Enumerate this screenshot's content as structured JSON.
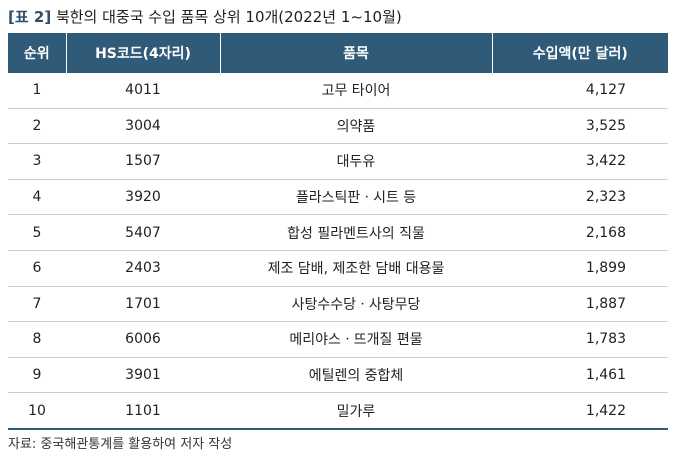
{
  "title": {
    "tag": "[표 2]",
    "text": "북한의 대중국 수입 품목 상위 10개(2022년 1~10월)"
  },
  "table": {
    "headers": [
      "순위",
      "HS코드(4자리)",
      "품목",
      "수입액(만 달러)"
    ],
    "rows": [
      {
        "rank": "1",
        "hs": "4011",
        "item": "고무 타이어",
        "amount": "4,127"
      },
      {
        "rank": "2",
        "hs": "3004",
        "item": "의약품",
        "amount": "3,525"
      },
      {
        "rank": "3",
        "hs": "1507",
        "item": "대두유",
        "amount": "3,422"
      },
      {
        "rank": "4",
        "hs": "3920",
        "item": "플라스틱판ㆍ시트 등",
        "amount": "2,323"
      },
      {
        "rank": "5",
        "hs": "5407",
        "item": "합성 필라멘트사의 직물",
        "amount": "2,168"
      },
      {
        "rank": "6",
        "hs": "2403",
        "item": "제조 담배, 제조한 담배 대용물",
        "amount": "1,899"
      },
      {
        "rank": "7",
        "hs": "1701",
        "item": "사탕수수당ㆍ사탕무당",
        "amount": "1,887"
      },
      {
        "rank": "8",
        "hs": "6006",
        "item": "메리야스ㆍ뜨개질 편물",
        "amount": "1,783"
      },
      {
        "rank": "9",
        "hs": "3901",
        "item": "에틸렌의 중합체",
        "amount": "1,461"
      },
      {
        "rank": "10",
        "hs": "1101",
        "item": "밀가루",
        "amount": "1,422"
      }
    ]
  },
  "source": "자료: 중국해관통계를 활용하여 저자 작성",
  "colors": {
    "header_bg": "#2f5a78",
    "header_text": "#ffffff",
    "row_divider": "#c9cfd6"
  }
}
